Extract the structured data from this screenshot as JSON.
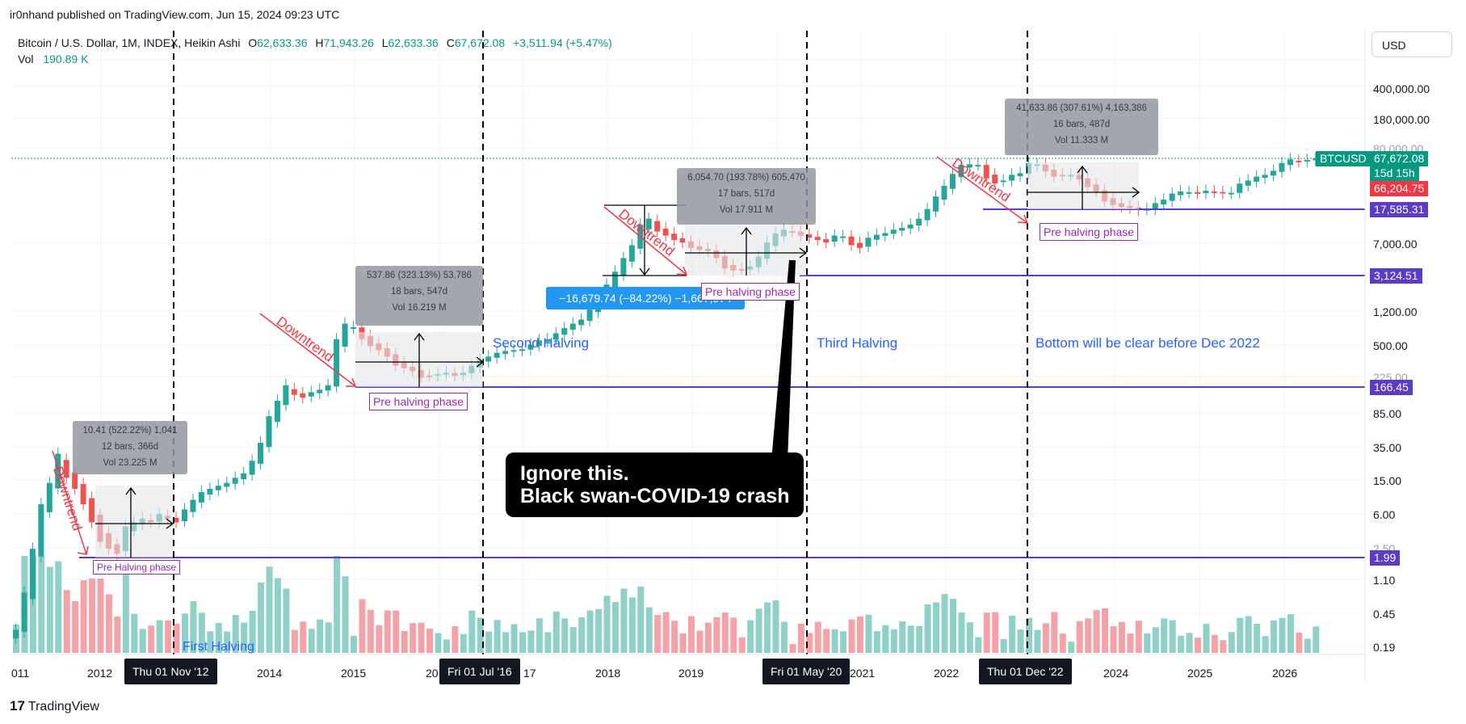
{
  "header": {
    "published": "ir0nhand published on TradingView.com, Jun 15, 2024 09:23 UTC",
    "symbol": "Bitcoin / U.S. Dollar, 1M, INDEX, Heikin Ashi",
    "o_label": "O",
    "o_value": "62,633.36",
    "h_label": "H",
    "h_value": "71,943.26",
    "l_label": "L",
    "l_value": "62,633.36",
    "c_label": "C",
    "c_value": "67,672.08",
    "change": "+3,511.94 (+5.47%)",
    "vol_label": "Vol",
    "vol_value": "190.89 K",
    "currency": "USD"
  },
  "y_axis": {
    "labels": [
      "400,000.00",
      "180,000.00",
      "80,000.00",
      "7,000.00",
      "1,200.00",
      "500.00",
      "225.00",
      "85.00",
      "35.00",
      "15.00",
      "6.00",
      "2.50",
      "1.10",
      "0.45",
      "0.19"
    ]
  },
  "price_tags": [
    {
      "label": "BTCUSD",
      "color": "#089981"
    },
    {
      "label": "67,672.08",
      "color": "#089981"
    },
    {
      "label": "15d 15h",
      "color": "#089981"
    },
    {
      "label": "66,204.75",
      "color": "#f23645"
    },
    {
      "label": "17,585.31",
      "color": "#5b3cc4"
    },
    {
      "label": "3,124.51",
      "color": "#5b3cc4"
    },
    {
      "label": "166.45",
      "color": "#5b3cc4"
    },
    {
      "label": "1.99",
      "color": "#5b3cc4"
    }
  ],
  "x_axis": {
    "labels": [
      "011",
      "2012",
      "2014",
      "2015",
      "20",
      "17",
      "2018",
      "2019",
      "2021",
      "2022",
      "2024",
      "2025",
      "2026"
    ],
    "badges": [
      "Thu 01 Nov '12",
      "Fri 01 Jul '16",
      "Fri 01 May '20",
      "Thu 01 Dec '22"
    ]
  },
  "measures": [
    {
      "line1": "10.41 (522.22%) 1,041",
      "line2": "12 bars, 366d",
      "line3": "Vol 23.225 M"
    },
    {
      "line1": "537.86 (323.13%) 53,786",
      "line2": "18 bars, 547d",
      "line3": "Vol 16.219 M"
    },
    {
      "line1": "6,054.70 (193.78%) 605,470",
      "line2": "17 bars, 517d",
      "line3": "Vol 17.911 M"
    },
    {
      "line1": "41,633.86 (307.61%) 4,163,386",
      "line2": "16 bars, 487d",
      "line3": "Vol 11.333 M"
    }
  ],
  "drop_measure": "−16,679.74 (−84.22%) −1,667,974",
  "annotations": {
    "pre_halving_1": "Pre Halving phase",
    "pre_halving_2": "Pre halving phase",
    "pre_halving_3": "Pre halving phase",
    "pre_halving_4": "Pre halving phase",
    "downtrend": "Downtrend",
    "first_halving": "First Halving",
    "second_halving": "Second Halving",
    "third_halving": "Third Halving",
    "bottom_note": "Bottom will be clear before Dec 2022",
    "callout_line1": "Ignore this.",
    "callout_line2": "Black swan-COVID-19 crash"
  },
  "footer": {
    "brand": "TradingView",
    "brand_mark": "17"
  },
  "colors": {
    "up": "#26a69a",
    "down": "#ef5350",
    "up_vol": "#8fd1c8",
    "down_vol": "#f3a3a8",
    "level": "#5b3cc4",
    "blue_label": "#2962ff"
  },
  "chart_data": {
    "type": "candlestick",
    "title": "",
    "y_scale": "log",
    "ylim": [
      0.1,
      1000000
    ],
    "levels": [
      17585.31,
      3124.51,
      166.45,
      1.99
    ],
    "series": [
      {
        "name": "BTCUSD",
        "close": [
          0.3,
          0.8,
          2.5,
          8,
          14,
          30,
          16,
          12,
          8,
          5,
          3,
          2.5,
          2.2,
          4.5,
          5,
          5.5,
          5,
          6.2,
          5.5,
          5,
          7,
          9,
          11,
          12,
          13,
          14,
          16,
          18,
          25,
          40,
          80,
          120,
          180,
          140,
          130,
          150,
          160,
          180,
          600,
          900,
          820,
          600,
          500,
          450,
          380,
          300,
          280,
          260,
          220,
          230,
          240,
          250,
          230,
          250,
          300,
          350,
          380,
          420,
          440,
          450,
          460,
          520,
          580,
          600,
          700,
          800,
          900,
          1000,
          1300,
          1800,
          2500,
          3500,
          5000,
          7000,
          12000,
          14000,
          10000,
          9000,
          8000,
          7500,
          6500,
          6200,
          6000,
          5000,
          3800,
          3600,
          3700,
          4000,
          5200,
          7500,
          9500,
          10500,
          10000,
          9000,
          8500,
          8000,
          7500,
          9000,
          8800,
          7000,
          6500,
          8500,
          9200,
          9600,
          10500,
          11000,
          12000,
          14000,
          18000,
          25000,
          33000,
          45000,
          57000,
          58000,
          57000,
          40000,
          35000,
          38000,
          44000,
          46000,
          60000,
          58000,
          48000,
          42000,
          43000,
          44000,
          39000,
          32000,
          28000,
          22000,
          20000,
          19000,
          18500,
          17500,
          18000,
          21000,
          23000,
          27000,
          28500,
          28000,
          27000,
          29000,
          28000,
          27000,
          27500,
          35000,
          38000,
          42000,
          44000,
          49000,
          60000,
          66000,
          62000,
          65000,
          67672
        ]
      }
    ]
  }
}
